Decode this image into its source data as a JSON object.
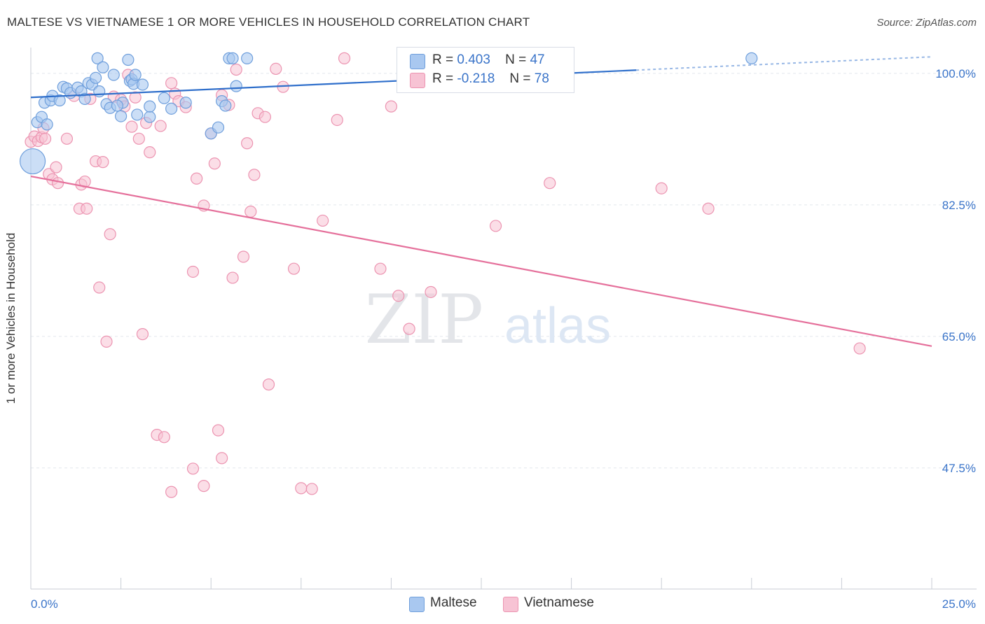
{
  "title": "MALTESE VS VIETNAMESE 1 OR MORE VEHICLES IN HOUSEHOLD CORRELATION CHART",
  "source": "Source: ZipAtlas.com",
  "watermark": {
    "zip": "ZIP",
    "atlas": "atlas"
  },
  "legend": {
    "series": [
      {
        "r_label": "R =",
        "r_value": "0.403",
        "n_label": "N =",
        "n_value": "47"
      },
      {
        "r_label": "R =",
        "r_value": "-0.218",
        "n_label": "N =",
        "n_value": "78"
      }
    ]
  },
  "bottom_legend": {
    "maltese": "Maltese",
    "vietnamese": "Vietnamese"
  },
  "colors": {
    "maltese_fill": "#a9c8f0",
    "maltese_stroke": "#6f9fdc",
    "maltese_line": "#2f6fcb",
    "vietnamese_fill": "#f7c3d4",
    "vietnamese_stroke": "#ec94b1",
    "vietnamese_line": "#e5709b",
    "tick_label": "#3a74c9",
    "grid": "#e2e6ec"
  },
  "chart_data": {
    "type": "scatter",
    "title": "MALTESE VS VIETNAMESE 1 OR MORE VEHICLES IN HOUSEHOLD CORRELATION CHART",
    "xlabel": "",
    "ylabel": "1 or more Vehicles in Household",
    "xlim": [
      0,
      25
    ],
    "ylim": [
      32.5,
      102.5
    ],
    "x_tick_labels": [
      "0.0%",
      "25.0%"
    ],
    "y_ticks": [
      47.5,
      65.0,
      82.5,
      100.0
    ],
    "y_tick_labels": [
      "47.5%",
      "65.0%",
      "82.5%",
      "100.0%"
    ],
    "grid": true,
    "series": [
      {
        "name": "Maltese",
        "r": 0.403,
        "n": 47,
        "trend": {
          "x": [
            0,
            25
          ],
          "y": [
            96.8,
            102.2
          ]
        },
        "points": [
          [
            0.05,
            88.3
          ],
          [
            0.18,
            93.5
          ],
          [
            0.3,
            94.2
          ],
          [
            0.38,
            96.1
          ],
          [
            0.45,
            93.2
          ],
          [
            0.55,
            96.4
          ],
          [
            0.6,
            97.0
          ],
          [
            0.8,
            96.4
          ],
          [
            0.9,
            98.2
          ],
          [
            1.0,
            98.0
          ],
          [
            1.1,
            97.4
          ],
          [
            1.3,
            98.1
          ],
          [
            1.4,
            97.6
          ],
          [
            1.5,
            96.6
          ],
          [
            1.6,
            98.7
          ],
          [
            1.7,
            98.5
          ],
          [
            1.8,
            99.4
          ],
          [
            1.9,
            97.6
          ],
          [
            1.85,
            102.0
          ],
          [
            2.0,
            100.8
          ],
          [
            2.1,
            95.9
          ],
          [
            2.2,
            95.4
          ],
          [
            2.3,
            99.8
          ],
          [
            2.5,
            94.3
          ],
          [
            2.55,
            96.1
          ],
          [
            2.7,
            101.8
          ],
          [
            2.75,
            99.0
          ],
          [
            2.8,
            99.2
          ],
          [
            2.85,
            98.6
          ],
          [
            2.9,
            99.8
          ],
          [
            2.95,
            94.5
          ],
          [
            3.1,
            98.5
          ],
          [
            3.3,
            94.2
          ],
          [
            3.3,
            95.6
          ],
          [
            3.7,
            96.7
          ],
          [
            3.9,
            95.3
          ],
          [
            4.3,
            96.1
          ],
          [
            5.0,
            92.0
          ],
          [
            5.2,
            92.8
          ],
          [
            5.3,
            96.3
          ],
          [
            5.4,
            95.7
          ],
          [
            5.5,
            102.0
          ],
          [
            5.6,
            102.0
          ],
          [
            5.7,
            98.3
          ],
          [
            6.0,
            102.0
          ],
          [
            20.0,
            102.0
          ],
          [
            2.4,
            95.7
          ]
        ]
      },
      {
        "name": "Vietnamese",
        "r": -0.218,
        "n": 78,
        "trend": {
          "x": [
            0,
            25
          ],
          "y": [
            86.3,
            63.7
          ]
        },
        "points": [
          [
            0.0,
            90.9
          ],
          [
            0.1,
            91.6
          ],
          [
            0.2,
            91.0
          ],
          [
            0.3,
            91.5
          ],
          [
            0.35,
            92.7
          ],
          [
            0.4,
            91.3
          ],
          [
            0.5,
            86.6
          ],
          [
            0.6,
            85.9
          ],
          [
            0.7,
            87.5
          ],
          [
            0.75,
            85.4
          ],
          [
            1.0,
            91.3
          ],
          [
            1.2,
            97.0
          ],
          [
            1.35,
            82.0
          ],
          [
            1.4,
            85.2
          ],
          [
            1.5,
            85.6
          ],
          [
            1.55,
            82.0
          ],
          [
            1.65,
            96.6
          ],
          [
            1.8,
            88.3
          ],
          [
            1.9,
            71.5
          ],
          [
            2.0,
            88.2
          ],
          [
            2.1,
            64.3
          ],
          [
            2.2,
            78.6
          ],
          [
            2.3,
            96.9
          ],
          [
            2.5,
            96.5
          ],
          [
            2.6,
            95.6
          ],
          [
            2.7,
            99.8
          ],
          [
            2.8,
            92.9
          ],
          [
            2.9,
            96.8
          ],
          [
            3.0,
            91.3
          ],
          [
            3.1,
            65.3
          ],
          [
            3.2,
            93.4
          ],
          [
            3.3,
            89.5
          ],
          [
            3.5,
            51.9
          ],
          [
            3.6,
            93.0
          ],
          [
            3.7,
            51.6
          ],
          [
            3.9,
            98.7
          ],
          [
            4.0,
            97.3
          ],
          [
            4.1,
            96.3
          ],
          [
            4.3,
            95.5
          ],
          [
            4.5,
            73.6
          ],
          [
            4.6,
            86.0
          ],
          [
            4.8,
            82.4
          ],
          [
            5.0,
            92.0
          ],
          [
            5.1,
            88.0
          ],
          [
            5.3,
            97.1
          ],
          [
            5.5,
            95.8
          ],
          [
            5.6,
            72.8
          ],
          [
            5.7,
            100.5
          ],
          [
            5.9,
            75.6
          ],
          [
            6.0,
            90.7
          ],
          [
            6.1,
            81.6
          ],
          [
            6.3,
            94.7
          ],
          [
            6.5,
            94.2
          ],
          [
            6.6,
            58.6
          ],
          [
            6.8,
            100.6
          ],
          [
            7.0,
            98.2
          ],
          [
            7.3,
            74.0
          ],
          [
            7.5,
            44.8
          ],
          [
            7.8,
            44.7
          ],
          [
            5.2,
            52.5
          ],
          [
            5.3,
            48.8
          ],
          [
            4.5,
            47.4
          ],
          [
            4.8,
            45.1
          ],
          [
            3.9,
            44.3
          ],
          [
            8.1,
            80.4
          ],
          [
            8.5,
            93.8
          ],
          [
            9.7,
            74.0
          ],
          [
            10.0,
            95.6
          ],
          [
            10.2,
            70.4
          ],
          [
            10.5,
            66.0
          ],
          [
            11.1,
            70.9
          ],
          [
            12.9,
            79.7
          ],
          [
            14.4,
            85.4
          ],
          [
            17.5,
            84.7
          ],
          [
            18.8,
            82.0
          ],
          [
            23.0,
            63.4
          ],
          [
            8.7,
            102.0
          ],
          [
            6.2,
            86.5
          ]
        ]
      }
    ]
  }
}
